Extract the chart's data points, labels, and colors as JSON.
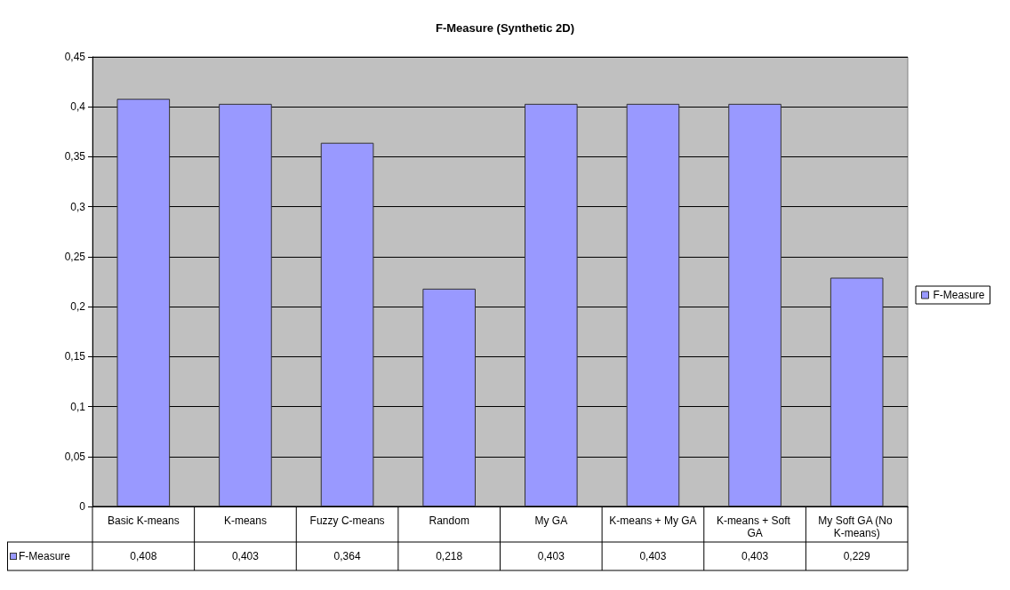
{
  "chart_data": {
    "type": "bar",
    "title": "F-Measure (Synthetic 2D)",
    "categories": [
      "Basic K-means",
      "K-means",
      "Fuzzy C-means",
      "Random",
      "My GA",
      "K-means + My GA",
      "K-means + Soft GA",
      "My Soft GA (No K-means)"
    ],
    "series": [
      {
        "name": "F-Measure",
        "color": "#9999ff",
        "values": [
          0.408,
          0.403,
          0.364,
          0.218,
          0.403,
          0.403,
          0.403,
          0.229
        ],
        "value_labels": [
          "0,408",
          "0,403",
          "0,364",
          "0,218",
          "0,403",
          "0,403",
          "0,403",
          "0,229"
        ]
      }
    ],
    "ylim": [
      0,
      0.45
    ],
    "yticks": [
      {
        "value": 0,
        "label": "0"
      },
      {
        "value": 0.05,
        "label": "0,05"
      },
      {
        "value": 0.1,
        "label": "0,1"
      },
      {
        "value": 0.15,
        "label": "0,15"
      },
      {
        "value": 0.2,
        "label": "0,2"
      },
      {
        "value": 0.25,
        "label": "0,25"
      },
      {
        "value": 0.3,
        "label": "0,3"
      },
      {
        "value": 0.35,
        "label": "0,35"
      },
      {
        "value": 0.4,
        "label": "0,4"
      },
      {
        "value": 0.45,
        "label": "0,45"
      }
    ],
    "grid": "y",
    "legend": "right"
  }
}
